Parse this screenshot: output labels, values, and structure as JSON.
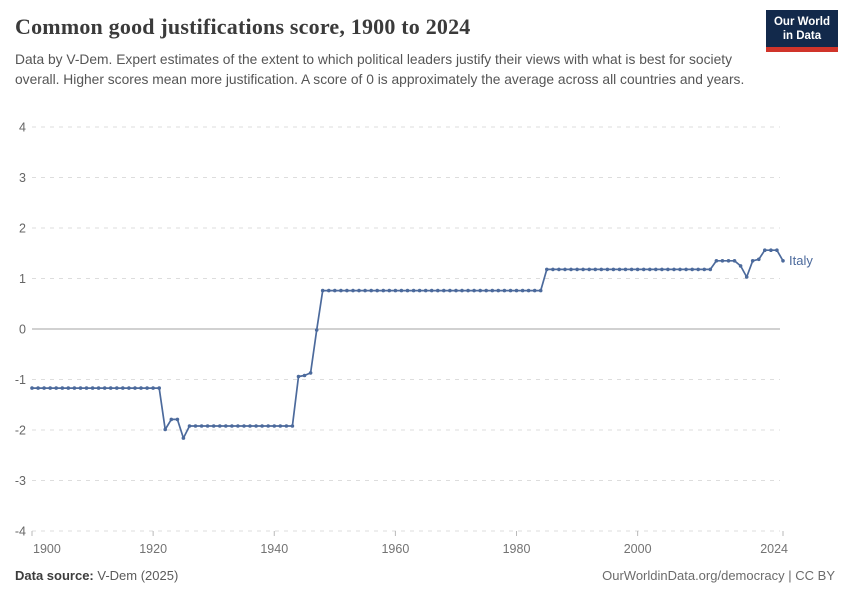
{
  "header": {
    "title": "Common good justifications score, 1900 to 2024",
    "subtitle": "Data by V-Dem. Expert estimates of the extent to which political leaders justify their views with what is best for society overall. Higher scores mean more justification. A score of 0 is approximately the average across all countries and years.",
    "logo": {
      "line1": "Our World",
      "line2": "in Data"
    }
  },
  "footer": {
    "datasource_label": "Data source:",
    "datasource_value": " V-Dem (2025)",
    "attribution": "OurWorldinData.org/democracy | CC BY"
  },
  "colors": {
    "line": "#4c6a9c",
    "gridline": "#dddddd",
    "zero_line": "#a3a3a3",
    "axis_label": "#666666",
    "x_axis_label": "#737373",
    "tick_mark": "#b9b9b9",
    "logo_navy": "#12294b",
    "logo_red": "#d0342a"
  },
  "chart_data": {
    "type": "line",
    "title": "Common good justifications score, 1900 to 2024",
    "xlabel": "",
    "ylabel": "",
    "xlim": [
      1900,
      2024
    ],
    "ylim": [
      -4,
      4
    ],
    "yticks": [
      4,
      3,
      2,
      1,
      0,
      -1,
      -2,
      -3,
      -4
    ],
    "xticks": [
      1900,
      1920,
      1940,
      1960,
      1980,
      2000,
      2024
    ],
    "grid": true,
    "legend_position": "line-end-label",
    "series": [
      {
        "name": "Italy",
        "points": [
          [
            1900,
            -1.17
          ],
          [
            1901,
            -1.17
          ],
          [
            1902,
            -1.17
          ],
          [
            1903,
            -1.17
          ],
          [
            1904,
            -1.17
          ],
          [
            1905,
            -1.17
          ],
          [
            1906,
            -1.17
          ],
          [
            1907,
            -1.17
          ],
          [
            1908,
            -1.17
          ],
          [
            1909,
            -1.17
          ],
          [
            1910,
            -1.17
          ],
          [
            1911,
            -1.17
          ],
          [
            1912,
            -1.17
          ],
          [
            1913,
            -1.17
          ],
          [
            1914,
            -1.17
          ],
          [
            1915,
            -1.17
          ],
          [
            1916,
            -1.17
          ],
          [
            1917,
            -1.17
          ],
          [
            1918,
            -1.17
          ],
          [
            1919,
            -1.17
          ],
          [
            1920,
            -1.17
          ],
          [
            1921,
            -1.17
          ],
          [
            1922,
            -1.99
          ],
          [
            1923,
            -1.79
          ],
          [
            1924,
            -1.79
          ],
          [
            1925,
            -2.16
          ],
          [
            1926,
            -1.92
          ],
          [
            1927,
            -1.92
          ],
          [
            1928,
            -1.92
          ],
          [
            1929,
            -1.92
          ],
          [
            1930,
            -1.92
          ],
          [
            1931,
            -1.92
          ],
          [
            1932,
            -1.92
          ],
          [
            1933,
            -1.92
          ],
          [
            1934,
            -1.92
          ],
          [
            1935,
            -1.92
          ],
          [
            1936,
            -1.92
          ],
          [
            1937,
            -1.92
          ],
          [
            1938,
            -1.92
          ],
          [
            1939,
            -1.92
          ],
          [
            1940,
            -1.92
          ],
          [
            1941,
            -1.92
          ],
          [
            1942,
            -1.92
          ],
          [
            1943,
            -1.92
          ],
          [
            1944,
            -0.94
          ],
          [
            1945,
            -0.92
          ],
          [
            1946,
            -0.87
          ],
          [
            1947,
            -0.02
          ],
          [
            1948,
            0.76
          ],
          [
            1949,
            0.76
          ],
          [
            1950,
            0.76
          ],
          [
            1951,
            0.76
          ],
          [
            1952,
            0.76
          ],
          [
            1953,
            0.76
          ],
          [
            1954,
            0.76
          ],
          [
            1955,
            0.76
          ],
          [
            1956,
            0.76
          ],
          [
            1957,
            0.76
          ],
          [
            1958,
            0.76
          ],
          [
            1959,
            0.76
          ],
          [
            1960,
            0.76
          ],
          [
            1961,
            0.76
          ],
          [
            1962,
            0.76
          ],
          [
            1963,
            0.76
          ],
          [
            1964,
            0.76
          ],
          [
            1965,
            0.76
          ],
          [
            1966,
            0.76
          ],
          [
            1967,
            0.76
          ],
          [
            1968,
            0.76
          ],
          [
            1969,
            0.76
          ],
          [
            1970,
            0.76
          ],
          [
            1971,
            0.76
          ],
          [
            1972,
            0.76
          ],
          [
            1973,
            0.76
          ],
          [
            1974,
            0.76
          ],
          [
            1975,
            0.76
          ],
          [
            1976,
            0.76
          ],
          [
            1977,
            0.76
          ],
          [
            1978,
            0.76
          ],
          [
            1979,
            0.76
          ],
          [
            1980,
            0.76
          ],
          [
            1981,
            0.76
          ],
          [
            1982,
            0.76
          ],
          [
            1983,
            0.76
          ],
          [
            1984,
            0.76
          ],
          [
            1985,
            1.18
          ],
          [
            1986,
            1.18
          ],
          [
            1987,
            1.18
          ],
          [
            1988,
            1.18
          ],
          [
            1989,
            1.18
          ],
          [
            1990,
            1.18
          ],
          [
            1991,
            1.18
          ],
          [
            1992,
            1.18
          ],
          [
            1993,
            1.18
          ],
          [
            1994,
            1.18
          ],
          [
            1995,
            1.18
          ],
          [
            1996,
            1.18
          ],
          [
            1997,
            1.18
          ],
          [
            1998,
            1.18
          ],
          [
            1999,
            1.18
          ],
          [
            2000,
            1.18
          ],
          [
            2001,
            1.18
          ],
          [
            2002,
            1.18
          ],
          [
            2003,
            1.18
          ],
          [
            2004,
            1.18
          ],
          [
            2005,
            1.18
          ],
          [
            2006,
            1.18
          ],
          [
            2007,
            1.18
          ],
          [
            2008,
            1.18
          ],
          [
            2009,
            1.18
          ],
          [
            2010,
            1.18
          ],
          [
            2011,
            1.18
          ],
          [
            2012,
            1.18
          ],
          [
            2013,
            1.35
          ],
          [
            2014,
            1.35
          ],
          [
            2015,
            1.35
          ],
          [
            2016,
            1.35
          ],
          [
            2017,
            1.25
          ],
          [
            2018,
            1.03
          ],
          [
            2019,
            1.35
          ],
          [
            2020,
            1.38
          ],
          [
            2021,
            1.56
          ],
          [
            2022,
            1.56
          ],
          [
            2023,
            1.56
          ],
          [
            2024,
            1.35
          ]
        ]
      }
    ]
  }
}
